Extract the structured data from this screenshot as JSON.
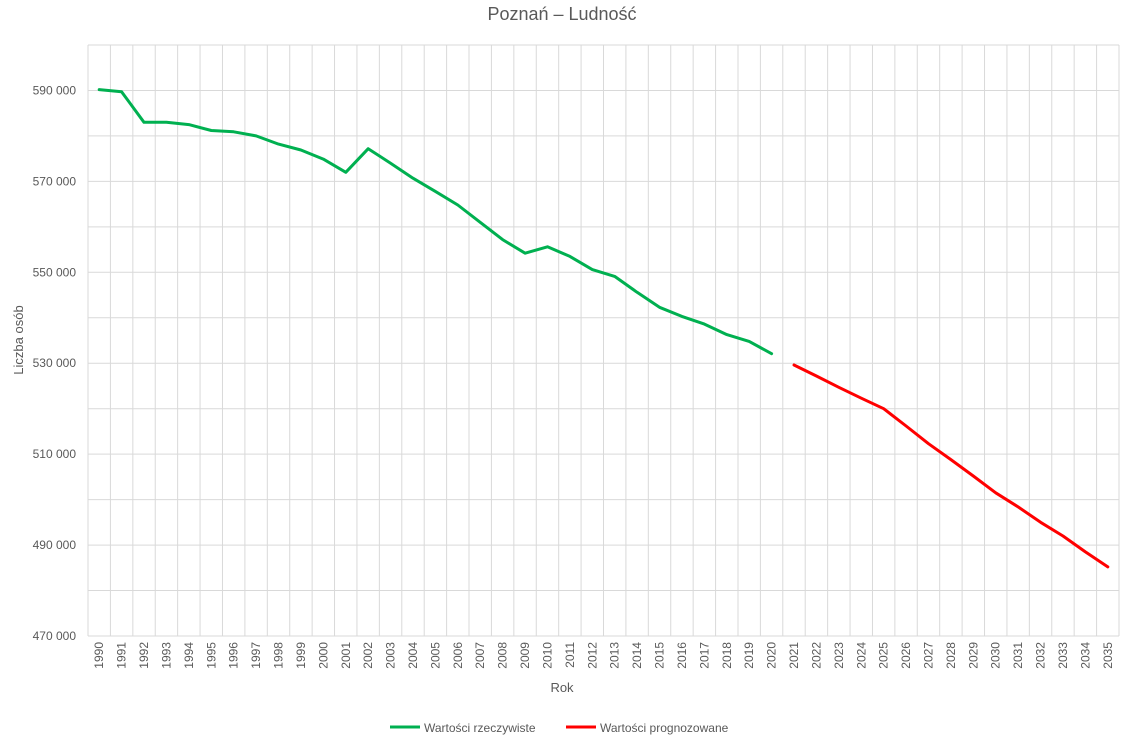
{
  "chart_data": {
    "type": "line",
    "title": "Poznań – Ludność",
    "xlabel": "Rok",
    "ylabel": "Liczba osób",
    "ylim": [
      470000,
      600000
    ],
    "y_ticks": [
      470000,
      490000,
      510000,
      530000,
      550000,
      570000,
      590000
    ],
    "y_tick_labels": [
      "470 000",
      "490 000",
      "510 000",
      "530 000",
      "550 000",
      "570 000",
      "590 000"
    ],
    "categories": [
      "1990",
      "1991",
      "1992",
      "1993",
      "1994",
      "1995",
      "1996",
      "1997",
      "1998",
      "1999",
      "2000",
      "2001",
      "2002",
      "2003",
      "2004",
      "2005",
      "2006",
      "2007",
      "2008",
      "2009",
      "2010",
      "2011",
      "2012",
      "2013",
      "2014",
      "2015",
      "2016",
      "2017",
      "2018",
      "2019",
      "2020",
      "2021",
      "2022",
      "2023",
      "2024",
      "2025",
      "2026",
      "2027",
      "2028",
      "2029",
      "2030",
      "2031",
      "2032",
      "2033",
      "2034",
      "2035"
    ],
    "grid": true,
    "legend_position": "bottom",
    "series": [
      {
        "name": "Wartości rzeczywiste",
        "color": "#00b050",
        "values": [
          590200,
          589700,
          583000,
          583000,
          582500,
          581200,
          580900,
          580000,
          578200,
          576900,
          574900,
          572000,
          577200,
          574000,
          570700,
          567800,
          564800,
          561000,
          557200,
          554200,
          555600,
          553500,
          550600,
          549100,
          545600,
          542300,
          540300,
          538600,
          536300,
          534800,
          532100,
          null,
          null,
          null,
          null,
          null,
          null,
          null,
          null,
          null,
          null,
          null,
          null,
          null,
          null,
          null
        ]
      },
      {
        "name": "Wartości prognozowane",
        "color": "#ff0000",
        "values": [
          null,
          null,
          null,
          null,
          null,
          null,
          null,
          null,
          null,
          null,
          null,
          null,
          null,
          null,
          null,
          null,
          null,
          null,
          null,
          null,
          null,
          null,
          null,
          null,
          null,
          null,
          null,
          null,
          null,
          null,
          null,
          529600,
          527200,
          524700,
          522300,
          520000,
          516200,
          512300,
          508800,
          505200,
          501500,
          498400,
          495000,
          492000,
          488500,
          485200
        ]
      }
    ]
  }
}
